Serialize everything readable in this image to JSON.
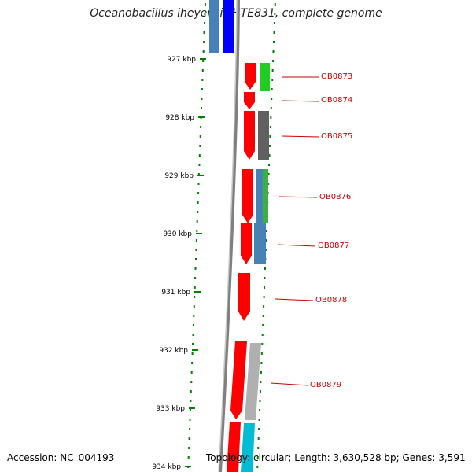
{
  "title": "Oceanobacillus iheyensis HTE831, complete genome",
  "footer": {
    "accession": "Accession: NC_004193",
    "summary": "Topology: circular; Length: 3,630,528 bp; Genes: 3,591"
  },
  "scale": {
    "ticks": [
      "927 kbp",
      "928 kbp",
      "929 kbp",
      "930 kbp",
      "931 kbp",
      "932 kbp",
      "933 kbp",
      "934 kbp"
    ]
  },
  "genes": [
    "OB0873",
    "OB0874",
    "OB0875",
    "OB0876",
    "OB0877",
    "OB0878",
    "OB0879"
  ],
  "colors": {
    "strand": "#ff0000",
    "backbone": "#808080",
    "tick": "#008000",
    "label": "#cc0000",
    "track_colors": [
      "#4682b4",
      "#0000ff",
      "#22cc22",
      "#606060",
      "#3cb043",
      "#4682b4",
      "#b0b0b0",
      "#00bcd4"
    ]
  }
}
